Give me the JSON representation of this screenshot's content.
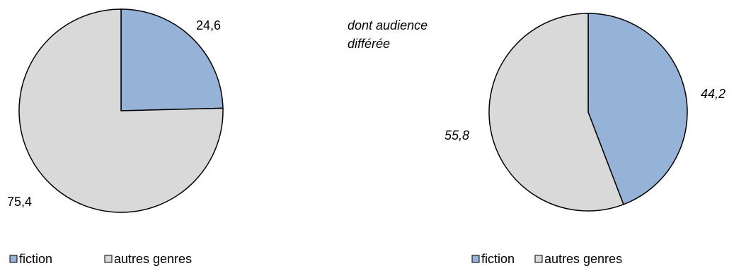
{
  "chart_data": [
    {
      "type": "pie",
      "title": "",
      "categories": [
        "fiction",
        "autres genres"
      ],
      "values": [
        24.6,
        75.4
      ],
      "value_labels": [
        "24,6",
        "75,4"
      ],
      "label_style": "normal",
      "legend": {
        "placement": "bottom-left",
        "entries": [
          "fiction",
          "autres genres"
        ]
      }
    },
    {
      "type": "pie",
      "title": "dont audience différée",
      "categories": [
        "fiction",
        "autres genres"
      ],
      "values": [
        44.2,
        55.8
      ],
      "value_labels": [
        "44,2",
        "55,8"
      ],
      "label_style": "italic",
      "legend": {
        "placement": "bottom-right",
        "entries": [
          "fiction",
          "autres genres"
        ]
      }
    }
  ],
  "colors": {
    "fiction": "#95B3D7",
    "autres genres": "#D9D9D9",
    "outline": "#000000"
  }
}
